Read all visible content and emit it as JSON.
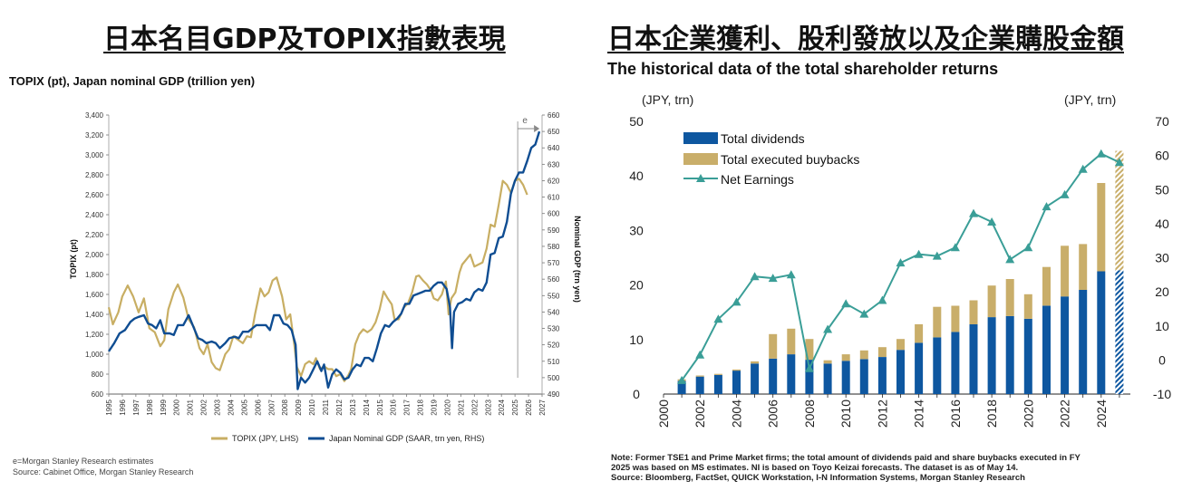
{
  "panels": {
    "left_title": "日本名目GDP及TOPIX指數表現",
    "right_title": "日本企業獲利、股利發放以及企業購股金額"
  },
  "chart_data": [
    {
      "type": "line",
      "title": "TOPIX (pt), Japan nominal GDP (trillion yen)",
      "ylabel": "TOPIX (pt)",
      "y2label": "Nominal GDP (trn yen)",
      "ylim": [
        600,
        3400
      ],
      "y2lim": [
        490,
        660
      ],
      "xlim": [
        1995,
        2027
      ],
      "yticks": [
        "600",
        "800",
        "1,000",
        "1,200",
        "1,400",
        "1,600",
        "1,800",
        "2,000",
        "2,200",
        "2,400",
        "2,600",
        "2,800",
        "3,000",
        "3,200",
        "3,400"
      ],
      "y2ticks": [
        "490",
        "500",
        "510",
        "520",
        "530",
        "540",
        "550",
        "560",
        "570",
        "580",
        "590",
        "600",
        "610",
        "620",
        "630",
        "640",
        "650",
        "660"
      ],
      "xticks": [
        "1995",
        "1996",
        "1997",
        "1998",
        "1999",
        "2000",
        "2001",
        "2002",
        "2003",
        "2004",
        "2005",
        "2006",
        "2007",
        "2008",
        "2009",
        "2010",
        "2011",
        "2012",
        "2013",
        "2014",
        "2015",
        "2016",
        "2017",
        "2018",
        "2019",
        "2020",
        "2021",
        "2022",
        "2023",
        "2024",
        "2025",
        "2026",
        "2027"
      ],
      "estimate_marker": "e",
      "estimate_start": 2025.2,
      "series": [
        {
          "name": "TOPIX (JPY, LHS)",
          "color": "#C8AE63",
          "axis": "left",
          "points": [
            [
              1995.0,
              1470
            ],
            [
              1995.3,
              1300
            ],
            [
              1995.7,
              1420
            ],
            [
              1996.0,
              1580
            ],
            [
              1996.4,
              1690
            ],
            [
              1996.8,
              1580
            ],
            [
              1997.2,
              1420
            ],
            [
              1997.6,
              1560
            ],
            [
              1998.0,
              1260
            ],
            [
              1998.4,
              1220
            ],
            [
              1998.8,
              1080
            ],
            [
              1999.1,
              1140
            ],
            [
              1999.4,
              1450
            ],
            [
              1999.8,
              1620
            ],
            [
              2000.1,
              1700
            ],
            [
              2000.5,
              1570
            ],
            [
              2000.9,
              1350
            ],
            [
              2001.3,
              1270
            ],
            [
              2001.7,
              1060
            ],
            [
              2002.0,
              1000
            ],
            [
              2002.3,
              1100
            ],
            [
              2002.6,
              920
            ],
            [
              2002.9,
              860
            ],
            [
              2003.2,
              840
            ],
            [
              2003.6,
              1000
            ],
            [
              2003.9,
              1050
            ],
            [
              2004.2,
              1180
            ],
            [
              2004.6,
              1140
            ],
            [
              2004.9,
              1110
            ],
            [
              2005.2,
              1180
            ],
            [
              2005.5,
              1170
            ],
            [
              2005.8,
              1400
            ],
            [
              2006.2,
              1660
            ],
            [
              2006.5,
              1580
            ],
            [
              2006.8,
              1620
            ],
            [
              2007.1,
              1740
            ],
            [
              2007.4,
              1770
            ],
            [
              2007.8,
              1580
            ],
            [
              2008.1,
              1350
            ],
            [
              2008.4,
              1400
            ],
            [
              2008.7,
              1100
            ],
            [
              2008.9,
              870
            ],
            [
              2009.2,
              780
            ],
            [
              2009.5,
              900
            ],
            [
              2009.8,
              930
            ],
            [
              2010.1,
              900
            ],
            [
              2010.3,
              960
            ],
            [
              2010.6,
              850
            ],
            [
              2010.9,
              880
            ],
            [
              2011.2,
              850
            ],
            [
              2011.5,
              850
            ],
            [
              2011.8,
              780
            ],
            [
              2012.1,
              800
            ],
            [
              2012.4,
              730
            ],
            [
              2012.7,
              790
            ],
            [
              2012.9,
              850
            ],
            [
              2013.2,
              1100
            ],
            [
              2013.5,
              1200
            ],
            [
              2013.8,
              1250
            ],
            [
              2014.1,
              1220
            ],
            [
              2014.4,
              1250
            ],
            [
              2014.7,
              1320
            ],
            [
              2015.0,
              1450
            ],
            [
              2015.3,
              1630
            ],
            [
              2015.6,
              1560
            ],
            [
              2015.9,
              1500
            ],
            [
              2016.1,
              1350
            ],
            [
              2016.4,
              1350
            ],
            [
              2016.8,
              1470
            ],
            [
              2017.1,
              1510
            ],
            [
              2017.4,
              1620
            ],
            [
              2017.7,
              1780
            ],
            [
              2017.9,
              1790
            ],
            [
              2018.2,
              1740
            ],
            [
              2018.5,
              1700
            ],
            [
              2018.8,
              1640
            ],
            [
              2019.0,
              1560
            ],
            [
              2019.3,
              1540
            ],
            [
              2019.6,
              1600
            ],
            [
              2019.9,
              1730
            ],
            [
              2020.1,
              1400
            ],
            [
              2020.3,
              1560
            ],
            [
              2020.6,
              1620
            ],
            [
              2020.9,
              1820
            ],
            [
              2021.1,
              1900
            ],
            [
              2021.4,
              1950
            ],
            [
              2021.7,
              2000
            ],
            [
              2022.0,
              1880
            ],
            [
              2022.3,
              1900
            ],
            [
              2022.6,
              1920
            ],
            [
              2022.9,
              2060
            ],
            [
              2023.2,
              2300
            ],
            [
              2023.5,
              2280
            ],
            [
              2023.8,
              2500
            ],
            [
              2024.1,
              2740
            ],
            [
              2024.4,
              2700
            ],
            [
              2024.7,
              2620
            ],
            [
              2025.0,
              2740
            ],
            [
              2025.3,
              2760
            ],
            [
              2025.6,
              2700
            ],
            [
              2025.9,
              2600
            ]
          ]
        },
        {
          "name": "Japan Nominal GDP (SAAR, trn yen, RHS)",
          "color": "#0F4D92",
          "axis": "right",
          "points": [
            [
              1995.0,
              516
            ],
            [
              1995.4,
              521
            ],
            [
              1995.8,
              527
            ],
            [
              1996.2,
              529
            ],
            [
              1996.6,
              534
            ],
            [
              1996.9,
              536
            ],
            [
              1997.2,
              537
            ],
            [
              1997.6,
              538
            ],
            [
              1997.9,
              533
            ],
            [
              1998.2,
              532
            ],
            [
              1998.5,
              530
            ],
            [
              1998.8,
              535
            ],
            [
              1999.1,
              527
            ],
            [
              1999.5,
              527
            ],
            [
              1999.8,
              526
            ],
            [
              2000.1,
              532
            ],
            [
              2000.5,
              532
            ],
            [
              2000.9,
              538
            ],
            [
              2001.2,
              532
            ],
            [
              2001.6,
              524
            ],
            [
              2001.9,
              523
            ],
            [
              2002.2,
              521
            ],
            [
              2002.6,
              522
            ],
            [
              2002.9,
              521
            ],
            [
              2003.2,
              518
            ],
            [
              2003.6,
              521
            ],
            [
              2003.9,
              524
            ],
            [
              2004.3,
              525
            ],
            [
              2004.6,
              524
            ],
            [
              2004.9,
              528
            ],
            [
              2005.3,
              528
            ],
            [
              2005.6,
              530
            ],
            [
              2005.9,
              532
            ],
            [
              2006.3,
              532
            ],
            [
              2006.6,
              532
            ],
            [
              2006.9,
              529
            ],
            [
              2007.2,
              538
            ],
            [
              2007.6,
              538
            ],
            [
              2007.9,
              533
            ],
            [
              2008.2,
              532
            ],
            [
              2008.5,
              529
            ],
            [
              2008.8,
              520
            ],
            [
              2008.95,
              493
            ],
            [
              2009.2,
              500
            ],
            [
              2009.5,
              497
            ],
            [
              2009.8,
              500
            ],
            [
              2010.1,
              505
            ],
            [
              2010.4,
              510
            ],
            [
              2010.7,
              504
            ],
            [
              2010.9,
              508
            ],
            [
              2011.2,
              494
            ],
            [
              2011.5,
              502
            ],
            [
              2011.8,
              505
            ],
            [
              2012.1,
              503
            ],
            [
              2012.4,
              499
            ],
            [
              2012.7,
              500
            ],
            [
              2013.0,
              505
            ],
            [
              2013.3,
              508
            ],
            [
              2013.6,
              507
            ],
            [
              2013.9,
              512
            ],
            [
              2014.2,
              512
            ],
            [
              2014.5,
              510
            ],
            [
              2014.8,
              518
            ],
            [
              2015.1,
              527
            ],
            [
              2015.4,
              532
            ],
            [
              2015.7,
              531
            ],
            [
              2016.0,
              534
            ],
            [
              2016.3,
              536
            ],
            [
              2016.6,
              539
            ],
            [
              2016.9,
              545
            ],
            [
              2017.2,
              545
            ],
            [
              2017.5,
              550
            ],
            [
              2017.8,
              551
            ],
            [
              2018.1,
              552
            ],
            [
              2018.4,
              553
            ],
            [
              2018.7,
              553
            ],
            [
              2019.0,
              556
            ],
            [
              2019.3,
              558
            ],
            [
              2019.6,
              558
            ],
            [
              2019.95,
              554
            ],
            [
              2020.2,
              543
            ],
            [
              2020.35,
              518
            ],
            [
              2020.5,
              540
            ],
            [
              2020.8,
              545
            ],
            [
              2021.1,
              546
            ],
            [
              2021.4,
              548
            ],
            [
              2021.7,
              547
            ],
            [
              2022.0,
              552
            ],
            [
              2022.3,
              554
            ],
            [
              2022.6,
              553
            ],
            [
              2022.9,
              558
            ],
            [
              2023.2,
              575
            ],
            [
              2023.5,
              576
            ],
            [
              2023.8,
              585
            ],
            [
              2024.1,
              586
            ],
            [
              2024.4,
              595
            ],
            [
              2024.7,
              612
            ],
            [
              2025.0,
              620
            ],
            [
              2025.3,
              625
            ],
            [
              2025.6,
              625
            ],
            [
              2025.9,
              632
            ],
            [
              2026.2,
              640
            ],
            [
              2026.5,
              642
            ],
            [
              2026.8,
              650
            ]
          ]
        }
      ],
      "notes": [
        "e=Morgan Stanley Research estimates",
        "Source: Cabinet Office, Morgan Stanley Research"
      ]
    },
    {
      "type": "bar",
      "title": "The historical data of the total shareholder returns",
      "ylabel": "(JPY, trn)",
      "y2label": "(JPY, trn)",
      "ylim": [
        0,
        50
      ],
      "y2lim": [
        -10,
        70
      ],
      "yticks": [
        "0",
        "10",
        "20",
        "30",
        "40",
        "50"
      ],
      "y2ticks": [
        "-10",
        "0",
        "10",
        "20",
        "30",
        "40",
        "50",
        "60",
        "70"
      ],
      "xticks": [
        "2000",
        "2002",
        "2004",
        "2006",
        "2008",
        "2010",
        "2012",
        "2014",
        "2016",
        "2018",
        "2020",
        "2022",
        "2024"
      ],
      "categories": [
        "2001",
        "2002",
        "2003",
        "2004",
        "2005",
        "2006",
        "2007",
        "2008",
        "2009",
        "2010",
        "2011",
        "2012",
        "2013",
        "2014",
        "2015",
        "2016",
        "2017",
        "2018",
        "2019",
        "2020",
        "2021",
        "2022",
        "2023",
        "2024",
        "2025"
      ],
      "estimate_last": true,
      "series": [
        {
          "name": "Total dividends",
          "color": "#0E57A0",
          "stack": "returns",
          "axis": "left",
          "values": [
            2.4,
            3.2,
            3.5,
            4.3,
            5.6,
            6.5,
            7.3,
            6.3,
            5.6,
            6.1,
            6.4,
            6.8,
            8.1,
            9.4,
            10.4,
            11.4,
            12.8,
            14.1,
            14.3,
            13.8,
            16.2,
            17.9,
            19.1,
            22.5,
            22.7
          ]
        },
        {
          "name": "Total executed buybacks",
          "color": "#C9AE6A",
          "stack": "returns",
          "axis": "left",
          "values": [
            0.3,
            0.2,
            0.2,
            0.2,
            0.4,
            4.5,
            4.7,
            3.8,
            0.6,
            1.2,
            1.6,
            1.8,
            2.0,
            3.4,
            5.6,
            4.8,
            4.4,
            5.8,
            6.8,
            4.5,
            7.1,
            9.3,
            8.4,
            16.2,
            21.9
          ]
        },
        {
          "name": "Net Earnings",
          "color": "#3A9E97",
          "axis": "right",
          "values": [
            -6.0,
            1.5,
            12.0,
            17.0,
            24.5,
            24.0,
            25.0,
            -2.5,
            9.0,
            16.5,
            13.5,
            17.5,
            28.5,
            31.0,
            30.5,
            33.0,
            43.0,
            40.5,
            29.5,
            33.0,
            45.0,
            48.5,
            56.0,
            60.5,
            58.0
          ]
        }
      ],
      "notes": [
        "Note: Former TSE1 and Prime Market firms; the total amount of dividends paid and share buybacks executed in FY",
        "2025 was based on MS estimates. NI is based on Toyo Keizai forecasts. The dataset is as of May 14.",
        "Source: Bloomberg, FactSet, QUICK Workstation, I-N Information Systems, Morgan Stanley Research"
      ]
    }
  ]
}
